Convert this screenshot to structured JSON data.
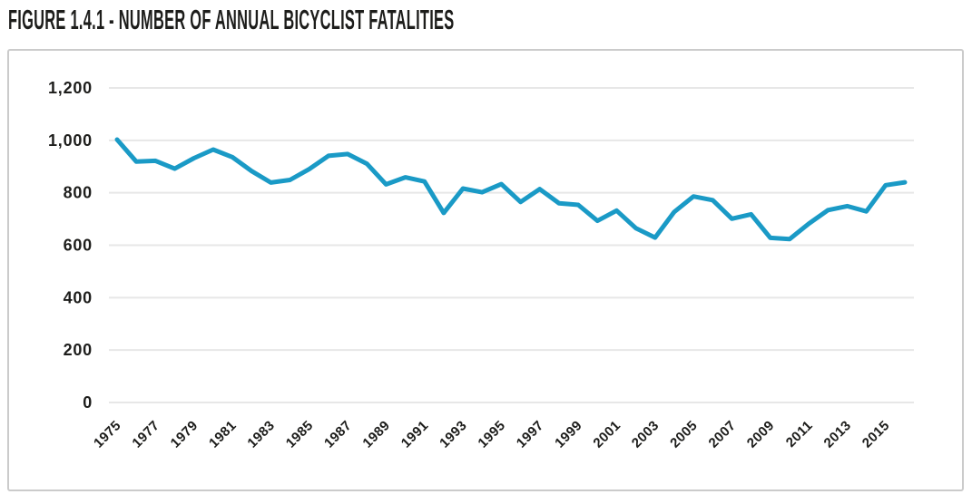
{
  "figure": {
    "title": "FIGURE 1.4.1 - NUMBER OF ANNUAL BICYCLIST FATALITIES"
  },
  "colors": {
    "line": "#1a9ac6",
    "gridline": "#e7e7e7",
    "text": "#1d1d1b",
    "panel_border": "#cbcbcb",
    "background": "#ffffff"
  },
  "chart_data": {
    "type": "line",
    "title": "FIGURE 1.4.1 - NUMBER OF ANNUAL BICYCLIST FATALITIES",
    "xlabel": "",
    "ylabel": "",
    "series_name": "Annual bicyclist fatalities",
    "x": [
      1975,
      1976,
      1977,
      1978,
      1979,
      1980,
      1981,
      1982,
      1983,
      1984,
      1985,
      1986,
      1987,
      1988,
      1989,
      1990,
      1991,
      1992,
      1993,
      1994,
      1995,
      1996,
      1997,
      1998,
      1999,
      2000,
      2001,
      2002,
      2003,
      2004,
      2005,
      2006,
      2007,
      2008,
      2009,
      2010,
      2011,
      2012,
      2013,
      2014,
      2015,
      2016
    ],
    "values": [
      1003,
      919,
      922,
      892,
      932,
      965,
      936,
      883,
      839,
      849,
      890,
      941,
      948,
      911,
      832,
      859,
      843,
      723,
      816,
      802,
      833,
      765,
      814,
      760,
      754,
      693,
      732,
      665,
      629,
      727,
      786,
      772,
      701,
      718,
      628,
      623,
      682,
      734,
      749,
      729,
      829,
      840
    ],
    "ylim": [
      0,
      1200
    ],
    "xlim": [
      1975,
      2016
    ],
    "y_ticks": [
      0,
      200,
      400,
      600,
      800,
      1000,
      1200
    ],
    "y_tick_labels": [
      "0",
      "200",
      "400",
      "600",
      "800",
      "1,000",
      "1,200"
    ],
    "x_tick_labels": [
      "1975",
      "1977",
      "1979",
      "1981",
      "1983",
      "1985",
      "1987",
      "1989",
      "1991",
      "1993",
      "1995",
      "1997",
      "1999",
      "2001",
      "2003",
      "2005",
      "2007",
      "2009",
      "2011",
      "2013",
      "2015"
    ],
    "grid": "horizontal",
    "legend": "none",
    "line_color": "#1a9ac6"
  }
}
